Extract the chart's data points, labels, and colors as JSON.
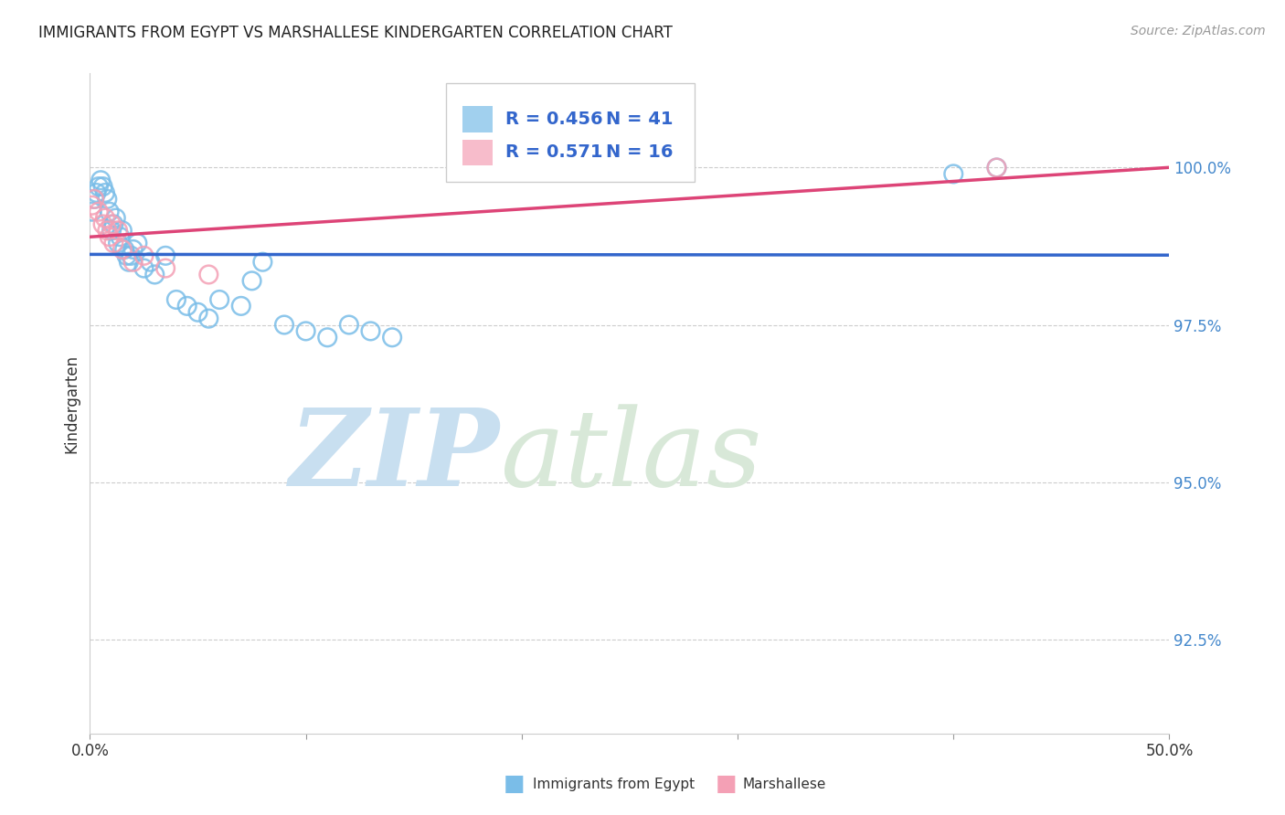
{
  "title": "IMMIGRANTS FROM EGYPT VS MARSHALLESE KINDERGARTEN CORRELATION CHART",
  "source": "Source: ZipAtlas.com",
  "xlabel_series1": "Immigrants from Egypt",
  "xlabel_series2": "Marshallese",
  "ylabel": "Kindergarten",
  "xlim": [
    0.0,
    50.0
  ],
  "ylim": [
    91.0,
    101.5
  ],
  "yticks": [
    92.5,
    95.0,
    97.5,
    100.0
  ],
  "ytick_labels": [
    "92.5%",
    "95.0%",
    "97.5%",
    "100.0%"
  ],
  "xticks": [
    0.0,
    10.0,
    20.0,
    30.0,
    40.0,
    50.0
  ],
  "xtick_labels": [
    "0.0%",
    "",
    "",
    "",
    "",
    "50.0%"
  ],
  "R1": 0.456,
  "N1": 41,
  "R2": 0.571,
  "N2": 16,
  "color1": "#7abde8",
  "color2": "#f4a0b5",
  "line_color1": "#3366cc",
  "line_color2": "#dd4477",
  "background": "#ffffff",
  "watermark": "ZIPatlas",
  "watermark_color": "#ddeef8",
  "blue_x": [
    0.1,
    0.2,
    0.3,
    0.4,
    0.5,
    0.6,
    0.7,
    0.8,
    0.9,
    1.0,
    1.1,
    1.2,
    1.3,
    1.4,
    1.5,
    1.6,
    1.7,
    1.8,
    1.9,
    2.0,
    2.2,
    2.5,
    2.8,
    3.0,
    3.5,
    4.0,
    4.5,
    5.0,
    5.5,
    6.0,
    7.0,
    7.5,
    8.0,
    9.0,
    10.0,
    11.0,
    12.0,
    13.0,
    14.0,
    40.0,
    42.0
  ],
  "blue_y": [
    99.3,
    99.5,
    99.6,
    99.7,
    99.8,
    99.7,
    99.6,
    99.5,
    99.3,
    99.0,
    99.1,
    99.2,
    98.8,
    98.9,
    99.0,
    98.7,
    98.6,
    98.5,
    98.6,
    98.7,
    98.8,
    98.4,
    98.5,
    98.3,
    98.6,
    97.9,
    97.8,
    97.7,
    97.6,
    97.9,
    97.8,
    98.2,
    98.5,
    97.5,
    97.4,
    97.3,
    97.5,
    97.4,
    97.3,
    99.9,
    100.0
  ],
  "pink_x": [
    0.1,
    0.2,
    0.4,
    0.6,
    0.7,
    0.8,
    0.9,
    1.0,
    1.1,
    1.3,
    1.5,
    2.0,
    2.5,
    3.5,
    5.5,
    42.0
  ],
  "pink_y": [
    99.4,
    99.5,
    99.3,
    99.1,
    99.2,
    99.0,
    98.9,
    99.1,
    98.8,
    99.0,
    98.7,
    98.5,
    98.6,
    98.4,
    98.3,
    100.0
  ]
}
